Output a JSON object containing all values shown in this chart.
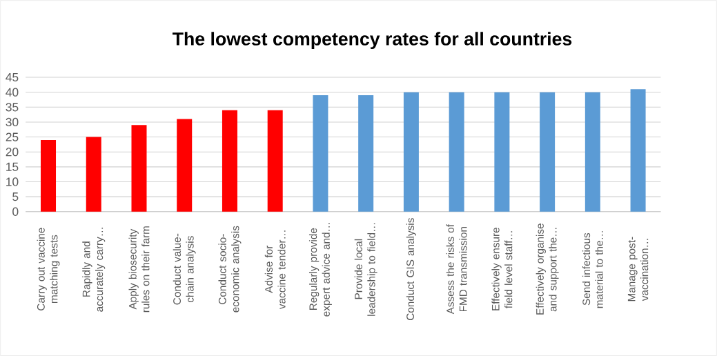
{
  "chart_data": {
    "type": "bar",
    "title": "The lowest competency rates for all countries",
    "categories": [
      "Carry out vaccine matching tests",
      "Rapidly and accurately carry…",
      "Apply biosecurity rules on their farm",
      "Conduct value-chain analysis",
      "Conduct socio-economic analysis",
      "Advise for vaccine tender…",
      "Regularly provide expert advice and…",
      "Provide local leadership to field…",
      "Conduct GIS analysis",
      "Assess the risks of FMD transmission",
      "Effectively ensure field level staff…",
      "Effectively organise and support the…",
      "Send infectious material to the…",
      "Manage post-vaccination…"
    ],
    "values": [
      24,
      25,
      29,
      31,
      34,
      34,
      39,
      39,
      40,
      40,
      40,
      40,
      40,
      41
    ],
    "colors": [
      "#ff0000",
      "#ff0000",
      "#ff0000",
      "#ff0000",
      "#ff0000",
      "#ff0000",
      "#5b9bd5",
      "#5b9bd5",
      "#5b9bd5",
      "#5b9bd5",
      "#5b9bd5",
      "#5b9bd5",
      "#5b9bd5",
      "#5b9bd5"
    ],
    "ylim": [
      0,
      45
    ],
    "yticks": [
      0,
      5,
      10,
      15,
      20,
      25,
      30,
      35,
      40,
      45
    ],
    "grid": true
  }
}
